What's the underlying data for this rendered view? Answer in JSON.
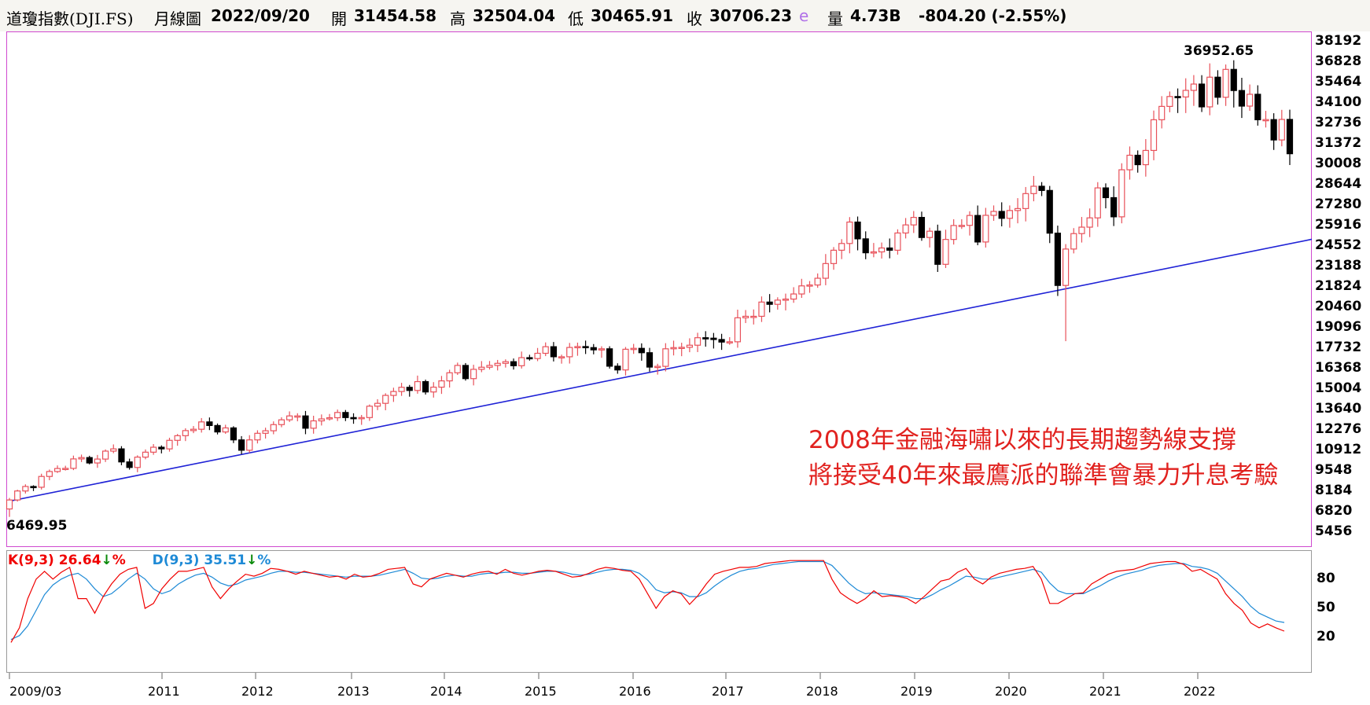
{
  "header": {
    "name": "道瓊指數(DJI.FS)",
    "period": "月線圖",
    "date": "2022/09/20",
    "open_label": "開",
    "open": "31454.58",
    "high_label": "高",
    "high": "32504.04",
    "low_label": "低",
    "low": "30465.91",
    "close_label": "收",
    "close": "30706.23",
    "e_mark": "e",
    "volume_label": "量",
    "volume": "4.73B",
    "change": "-804.20 (-2.55%)"
  },
  "annotation": {
    "line1": "2008年金融海嘯以來的長期趨勢線支撐",
    "line2": "將接受40年來最鷹派的聯準會暴力升息考驗"
  },
  "kd_legend": {
    "k_text": "K(9,3) 26.64",
    "d_text": "D(9,3) 35.51",
    "arrow": "↓",
    "percent": "%"
  },
  "colors": {
    "up": "#e8515a",
    "down": "#000000",
    "trendline": "#1f22d6",
    "k_line": "#f00000",
    "d_line": "#1e8ad6",
    "annotation": "#e1221f",
    "arrow": "#0a8a0a",
    "panel_border": "#d04ad0",
    "e_mark": "#b070e8",
    "change": "#000000"
  },
  "chart_data": {
    "type": "candlestick",
    "period": "monthly",
    "y_ticks": [
      38192,
      36828,
      35464,
      34100,
      32736,
      31372,
      30008,
      28644,
      27280,
      25916,
      24552,
      23188,
      21824,
      20460,
      19096,
      17732,
      16368,
      15004,
      13640,
      12276,
      10912,
      9548,
      8184,
      6820,
      5456
    ],
    "ylim": [
      4700,
      39000
    ],
    "x_tick_labels": [
      "2009/03",
      "2011",
      "2012",
      "2013",
      "2014",
      "2015",
      "2016",
      "2017",
      "2018",
      "2019",
      "2020",
      "2021",
      "2022"
    ],
    "start_month": "2009/03",
    "end_month": "2022/09",
    "high_marker": "36952.65",
    "low_marker": "6469.95",
    "trendline": {
      "from": [
        "2009/03",
        7500
      ],
      "to": [
        "2022/09",
        25000
      ]
    },
    "monthly_closes": [
      7600,
      8200,
      8500,
      8450,
      9170,
      9500,
      9700,
      9710,
      10340,
      10430,
      10070,
      10330,
      10860,
      11010,
      10140,
      9770,
      10460,
      10790,
      11120,
      11010,
      11580,
      11890,
      12230,
      12320,
      12810,
      12570,
      12140,
      12410,
      11610,
      10920,
      11610,
      12050,
      12220,
      12630,
      12950,
      13210,
      13210,
      12390,
      12880,
      13010,
      13090,
      13440,
      13100,
      13030,
      13100,
      13860,
      14050,
      14580,
      14840,
      15120,
      14910,
      15500,
      14810,
      15130,
      15550,
      16090,
      16580,
      15700,
      16320,
      16460,
      16580,
      16720,
      16830,
      16560,
      17100,
      17040,
      17390,
      17830,
      17160,
      17160,
      17780,
      17840,
      17770,
      17620,
      17690,
      16530,
      16280,
      17660,
      17720,
      17430,
      16470,
      16520,
      17690,
      17770,
      17790,
      17930,
      18430,
      18400,
      18310,
      18140,
      18160,
      19760,
      19860,
      19860,
      20810,
      20660,
      20940,
      21010,
      21350,
      21890,
      21950,
      22400,
      23380,
      24270,
      24720,
      26150,
      25030,
      24100,
      24160,
      24420,
      24270,
      25420,
      25960,
      26460,
      25120,
      25540,
      23330,
      24990,
      25920,
      25930,
      26590,
      24820,
      26600,
      26860,
      26400,
      26920,
      27050,
      28050,
      28540,
      28260,
      25410,
      21920,
      24350,
      25380,
      25810,
      26430,
      28430,
      27780,
      26500,
      29640,
      30610,
      29980,
      30930,
      32980,
      33870,
      34530,
      34500,
      34940,
      35360,
      33840,
      35820,
      34480,
      36340,
      34930,
      33890,
      34680,
      32980,
      32990,
      31630,
      33000,
      30710
    ],
    "k_series": [
      15,
      30,
      60,
      80,
      88,
      80,
      87,
      92,
      60,
      60,
      45,
      62,
      75,
      85,
      90,
      92,
      50,
      55,
      70,
      80,
      88,
      88,
      90,
      92,
      72,
      60,
      70,
      78,
      85,
      83,
      86,
      91,
      90,
      88,
      85,
      88,
      86,
      84,
      82,
      83,
      80,
      85,
      82,
      83,
      86,
      90,
      91,
      92,
      75,
      72,
      80,
      83,
      86,
      84,
      82,
      85,
      87,
      88,
      85,
      90,
      86,
      84,
      86,
      88,
      89,
      88,
      85,
      82,
      83,
      86,
      90,
      92,
      91,
      89,
      88,
      80,
      65,
      50,
      62,
      68,
      65,
      54,
      63,
      75,
      85,
      88,
      90,
      92,
      92,
      93,
      96,
      97,
      98,
      99,
      99,
      99,
      99,
      99,
      80,
      66,
      60,
      55,
      60,
      68,
      62,
      63,
      62,
      60,
      55,
      62,
      70,
      78,
      80,
      87,
      91,
      80,
      75,
      82,
      86,
      88,
      90,
      91,
      93,
      80,
      55,
      55,
      60,
      65,
      66,
      75,
      80,
      85,
      88,
      89,
      90,
      93,
      96,
      97,
      98,
      98,
      95,
      88,
      90,
      85,
      80,
      65,
      55,
      48,
      35,
      30,
      34,
      30,
      26.64
    ],
    "d_series": [
      18,
      22,
      32,
      48,
      64,
      74,
      80,
      84,
      86,
      80,
      70,
      62,
      65,
      72,
      80,
      86,
      80,
      70,
      65,
      68,
      75,
      80,
      84,
      86,
      82,
      76,
      73,
      75,
      79,
      81,
      83,
      86,
      88,
      88,
      87,
      87,
      86,
      85,
      84,
      83,
      82,
      83,
      83,
      83,
      84,
      86,
      88,
      90,
      86,
      81,
      80,
      81,
      83,
      84,
      83,
      83,
      85,
      86,
      86,
      87,
      87,
      86,
      86,
      87,
      88,
      88,
      87,
      85,
      84,
      85,
      87,
      89,
      90,
      90,
      89,
      86,
      79,
      69,
      66,
      67,
      66,
      62,
      62,
      66,
      73,
      79,
      84,
      88,
      90,
      91,
      93,
      95,
      96,
      97,
      98,
      98,
      98,
      98,
      94,
      85,
      76,
      69,
      65,
      66,
      65,
      64,
      63,
      62,
      60,
      60,
      64,
      69,
      73,
      78,
      83,
      82,
      80,
      80,
      82,
      84,
      86,
      88,
      90,
      87,
      76,
      68,
      65,
      65,
      65,
      69,
      73,
      78,
      82,
      85,
      87,
      89,
      92,
      94,
      95,
      96,
      96,
      93,
      92,
      90,
      86,
      78,
      70,
      62,
      52,
      45,
      41,
      37,
      35.51
    ],
    "kd_y_ticks": [
      80,
      50,
      20
    ]
  }
}
